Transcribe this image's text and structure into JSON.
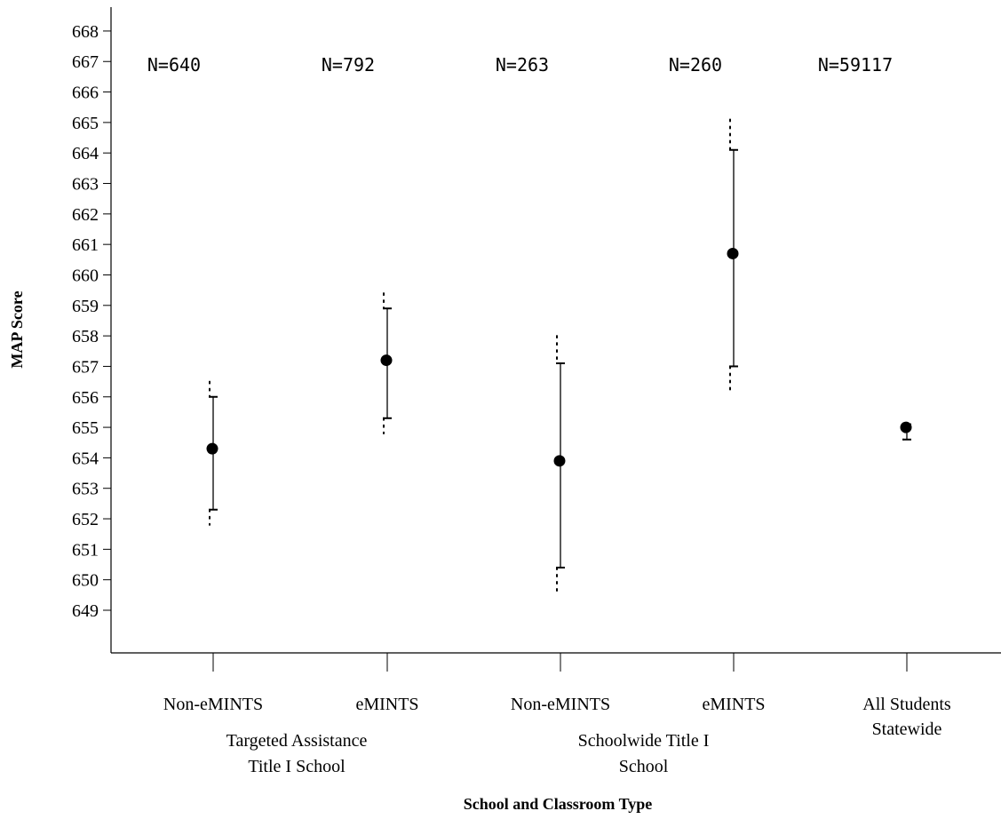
{
  "chart_data": {
    "type": "scatter",
    "subtype": "mean-with-confidence-intervals",
    "title": "",
    "ylabel": "MAP Score",
    "xlabel": "School and Classroom Type",
    "ylim": [
      648,
      668
    ],
    "yticks": [
      649,
      650,
      651,
      652,
      653,
      654,
      655,
      656,
      657,
      658,
      659,
      660,
      661,
      662,
      663,
      664,
      665,
      666,
      667,
      668
    ],
    "grid": false,
    "legend": "none",
    "categories": [
      "Non-eMINTS",
      "eMINTS",
      "Non-eMINTS",
      "eMINTS",
      "All Students Statewide"
    ],
    "groups": [
      {
        "label_line1": "Targeted Assistance",
        "label_line2": "Title I School",
        "spans": [
          0,
          1
        ]
      },
      {
        "label_line1": "Schoolwide Title I",
        "label_line2": "School",
        "spans": [
          2,
          3
        ]
      }
    ],
    "category_label_lines": [
      [
        "Non-eMINTS"
      ],
      [
        "eMINTS"
      ],
      [
        "Non-eMINTS"
      ],
      [
        "eMINTS"
      ],
      [
        "All Students",
        "Statewide"
      ]
    ],
    "n_labels": [
      "N=640",
      "N=792",
      "N=263",
      "N=260",
      "N=59117"
    ],
    "means": [
      654.3,
      657.2,
      653.9,
      660.7,
      655.0
    ],
    "ci_solid": [
      [
        652.3,
        656.0
      ],
      [
        655.3,
        658.9
      ],
      [
        650.4,
        657.1
      ],
      [
        657.0,
        664.1
      ],
      [
        654.6,
        655.1
      ]
    ],
    "ci_dotted": [
      [
        651.8,
        656.5
      ],
      [
        654.8,
        659.4
      ],
      [
        649.5,
        658.0
      ],
      [
        656.1,
        665.1
      ],
      [
        654.6,
        655.1
      ]
    ],
    "colors": {
      "marks": "#000000",
      "background": "#ffffff"
    }
  }
}
